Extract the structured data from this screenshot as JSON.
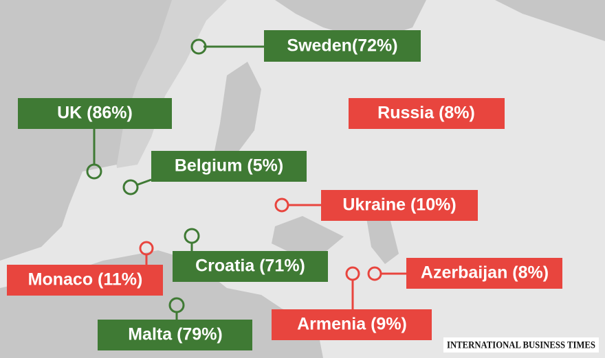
{
  "labels": [
    "Sweden(72%)",
    "UK (86%)",
    "Russia (8%)",
    "Belgium (5%)",
    "Ukraine (10%)",
    "Croatia (71%)",
    "Monaco (11%)",
    "Azerbaijan (8%)",
    "Armenia (9%)",
    "Malta (79%)"
  ],
  "logo": "INTERNATIONAL BUSINESS TIMES"
}
